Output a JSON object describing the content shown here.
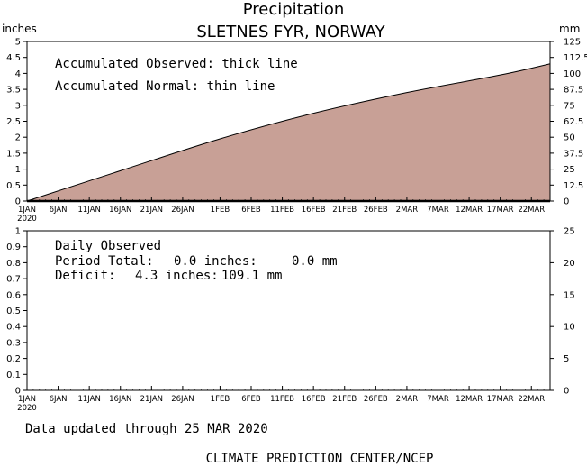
{
  "title": "Precipitation",
  "subtitle": "SLETNES FYR, NORWAY",
  "units": {
    "left": "inches",
    "right": "mm"
  },
  "upper_notes": {
    "line1": "Accumulated Observed: thick line",
    "line2": "Accumulated Normal: thin line"
  },
  "lower_notes": {
    "line1": "Daily Observed",
    "period_label": "Period Total:",
    "period_inches": "0.0 inches:",
    "period_mm": "0.0 mm",
    "deficit_label": "Deficit:",
    "deficit_inches": "4.3 inches:",
    "deficit_mm": "109.1 mm"
  },
  "footer": {
    "updated": "Data updated through 25 MAR 2020",
    "credit": "CLIMATE PREDICTION CENTER/NCEP"
  },
  "colors": {
    "fill": "#c8a096",
    "line": "#000000"
  },
  "chart_data": [
    {
      "type": "area",
      "title": "Precipitation",
      "subtitle": "SLETNES FYR, NORWAY",
      "ylabel_left": "inches",
      "ylabel_right": "mm",
      "ylim": [
        0,
        5
      ],
      "ylim_right": [
        0,
        125
      ],
      "y_ticks_left": [
        "0",
        "0.5",
        "1",
        "1.5",
        "2",
        "2.5",
        "3",
        "3.5",
        "4",
        "4.5",
        "5"
      ],
      "y_ticks_right": [
        "0",
        "12.5",
        "25",
        "37.5",
        "50",
        "62.5",
        "75",
        "87.5",
        "100",
        "112.5",
        "125"
      ],
      "x_tick_labels": [
        "1JAN",
        "6JAN",
        "11JAN",
        "16JAN",
        "21JAN",
        "26JAN",
        "1FEB",
        "6FEB",
        "11FEB",
        "16FEB",
        "21FEB",
        "26FEB",
        "2MAR",
        "7MAR",
        "12MAR",
        "17MAR",
        "22MAR"
      ],
      "x_year_label": "2020",
      "series": [
        {
          "name": "Accumulated Normal",
          "x": [
            "1JAN",
            "16JAN",
            "1FEB",
            "16FEB",
            "2MAR",
            "17MAR",
            "25MAR"
          ],
          "values": [
            0.0,
            0.95,
            1.95,
            2.75,
            3.4,
            3.95,
            4.3
          ]
        },
        {
          "name": "Accumulated Observed",
          "x": [
            "1JAN",
            "25MAR"
          ],
          "values": [
            0.0,
            0.0
          ]
        }
      ],
      "grid": false
    },
    {
      "type": "bar",
      "ylim": [
        0,
        1
      ],
      "ylim_right": [
        0,
        25
      ],
      "y_ticks_left": [
        "0",
        "0.1",
        "0.2",
        "0.3",
        "0.4",
        "0.5",
        "0.6",
        "0.7",
        "0.8",
        "0.9",
        "1"
      ],
      "y_ticks_right": [
        "0",
        "5",
        "10",
        "15",
        "20",
        "25"
      ],
      "x_tick_labels": [
        "1JAN",
        "6JAN",
        "11JAN",
        "16JAN",
        "21JAN",
        "26JAN",
        "1FEB",
        "6FEB",
        "11FEB",
        "16FEB",
        "21FEB",
        "26FEB",
        "2MAR",
        "7MAR",
        "12MAR",
        "17MAR",
        "22MAR"
      ],
      "x_year_label": "2020",
      "series": [
        {
          "name": "Daily Observed",
          "values": []
        }
      ],
      "grid": false
    }
  ]
}
